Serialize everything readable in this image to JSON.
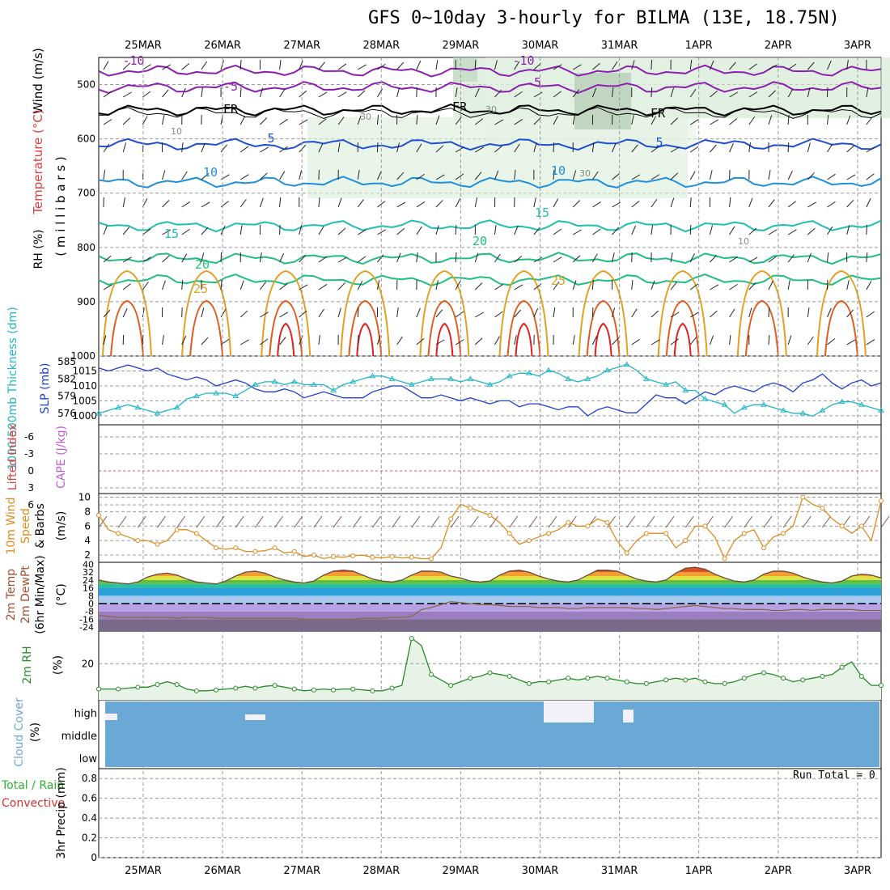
{
  "title": "GFS 0~10day 3-hourly for BILMA (13E, 18.75N)",
  "days": [
    "25MAR",
    "26MAR",
    "27MAR",
    "28MAR",
    "29MAR",
    "30MAR",
    "31MAR",
    "1APR",
    "2APR",
    "3APR"
  ],
  "panels": {
    "upper": {
      "ylabel_wind": "Wind (m/s)",
      "ylabel_temp": "Temperature (°C)",
      "ylabel_rh": "RH (%)",
      "ylabel_mb": "( m i l l i b a r s )",
      "yticks": [
        500,
        600,
        700,
        800,
        900,
        1000
      ],
      "isotherm_labels": [
        {
          "text": "-10",
          "level": "top"
        },
        {
          "text": "-10",
          "level": "top"
        },
        {
          "text": "-5",
          "level": "500"
        },
        {
          "text": "-5",
          "level": "500"
        },
        {
          "text": "FR",
          "level": "freezing"
        },
        {
          "text": "FR",
          "level": "freezing"
        },
        {
          "text": "FR",
          "level": "freezing"
        },
        {
          "text": "5",
          "level": "600"
        },
        {
          "text": "5",
          "level": "600"
        },
        {
          "text": "10",
          "level": "700"
        },
        {
          "text": "10",
          "level": "700"
        },
        {
          "text": "15",
          "level": "780"
        },
        {
          "text": "15",
          "level": "780"
        },
        {
          "text": "20",
          "level": "800"
        },
        {
          "text": "20",
          "level": "830"
        },
        {
          "text": "25",
          "level": "850"
        },
        {
          "text": "25",
          "level": "870"
        }
      ],
      "rh_labels": [
        "30",
        "30",
        "10",
        "30",
        "10"
      ]
    },
    "slp": {
      "ylabel_thick": "1000-500mb Thickness (dm)",
      "ylabel_slp": "SLP (mb)",
      "thick_ticks": [
        585,
        582,
        579,
        576
      ],
      "slp_ticks": [
        1015,
        1010,
        1005,
        1000
      ]
    },
    "cape": {
      "ylabel_li": "Lifted Index",
      "ylabel_cape": "CAPE (J/kg)",
      "ticks": [
        "-6",
        "-3",
        "0",
        "3",
        "6"
      ]
    },
    "wind10": {
      "ylabel1": "10m Wind",
      "ylabel2": "Speed",
      "ylabel3": "& Barbs",
      "ylabel_unit": "(m/s)",
      "ticks": [
        10,
        8,
        6,
        4,
        2
      ]
    },
    "temp2m": {
      "ylabel1": "2m Temp",
      "ylabel2": "2m DewPt",
      "ylabel3": "(6hr Min/Max)",
      "ylabel_unit": "(°C)",
      "ticks": [
        "40",
        "32",
        "24",
        "16",
        "8",
        "0",
        "-8",
        "-16",
        "-24"
      ]
    },
    "rh2m": {
      "ylabel": "2m RH",
      "ylabel_unit": "(%)",
      "ticks": [
        "20"
      ]
    },
    "cloud": {
      "ylabel": "Cloud Cover",
      "ylabel_unit": "(%)",
      "levels": [
        "high",
        "middle",
        "low"
      ]
    },
    "precip": {
      "ylabel_a": "Total / Rain",
      "ylabel_b": "Convective",
      "ylabel_c": "3hr Precip (mm)",
      "ticks": [
        "0.8",
        "0.6",
        "0.4",
        "0.2",
        "0"
      ],
      "run_total": "Run Total = 0"
    }
  },
  "colors": {
    "slp": "#1f3fcf",
    "thickness": "#22b6c6",
    "wind_speed": "#e08a1e",
    "rh": "#2a8a2a",
    "cloud": "#6aa9d6",
    "iso_minus10": "#8b1fb0",
    "iso_5": "#1f4fd0",
    "iso_10": "#1f8fe0",
    "iso_15": "#1fbfb0",
    "iso_20": "#1fbf7f",
    "iso_25": "#e0a020",
    "iso_30": "#e05a1e",
    "iso_35": "#e01f1f"
  },
  "chart_data": [
    {
      "type": "line",
      "title": "SLP and 1000-500mb Thickness",
      "x_steps": 81,
      "series": [
        {
          "name": "SLP (mb)",
          "values": [
            1016,
            1015,
            1016,
            1017,
            1016,
            1015,
            1016,
            1014,
            1013,
            1012,
            1013,
            1012,
            1010,
            1011,
            1012,
            1011,
            1009,
            1008,
            1008,
            1009,
            1008,
            1006,
            1007,
            1008,
            1007,
            1006,
            1006,
            1006,
            1008,
            1009,
            1010,
            1010,
            1008,
            1006,
            1006,
            1007,
            1006,
            1005,
            1006,
            1005,
            1004,
            1005,
            1005,
            1003,
            1004,
            1004,
            1003,
            1002,
            1003,
            1003,
            1000,
            1002,
            1003,
            1002,
            1001,
            1001,
            1004,
            1007,
            1006,
            1006,
            1004,
            1006,
            1008,
            1007,
            1009,
            1010,
            1009,
            1008,
            1010,
            1011,
            1010,
            1008,
            1011,
            1012,
            1014,
            1011,
            1009,
            1011,
            1012,
            1010,
            1011
          ]
        },
        {
          "name": "1000-500mb Thickness (dm)",
          "values": [
            576,
            576.5,
            577,
            577.5,
            577,
            576.5,
            576,
            576.5,
            577,
            578.5,
            579,
            579.5,
            579.5,
            579.5,
            579,
            580,
            581,
            581.5,
            581.5,
            581,
            581.5,
            581,
            581,
            581,
            580,
            581,
            581.5,
            582,
            582.5,
            582.5,
            582,
            581.5,
            581,
            581.5,
            582,
            582,
            582,
            581.5,
            582,
            581.5,
            581,
            581.5,
            582.5,
            583,
            583,
            582.5,
            583.5,
            583,
            582,
            581.5,
            582,
            582.5,
            583.5,
            584,
            584.5,
            583.5,
            582,
            581.5,
            581,
            581.5,
            580,
            580,
            578.5,
            578,
            577.5,
            576,
            577,
            577.5,
            577.5,
            577,
            576.5,
            576,
            576,
            575.5,
            576.5,
            577.5,
            578,
            578,
            577.5,
            577,
            576.5
          ]
        }
      ]
    },
    {
      "type": "line",
      "title": "10m Wind Speed",
      "x_steps": 81,
      "series": [
        {
          "name": "10m Wind Speed (m/s)",
          "values": [
            7.5,
            5.5,
            5,
            4.5,
            4,
            4,
            3.5,
            4,
            5.5,
            5.5,
            5,
            4,
            3,
            2.8,
            3,
            2.5,
            2.5,
            2.6,
            3,
            2.3,
            2.5,
            1.8,
            2,
            1.5,
            1.8,
            1.7,
            1.9,
            2,
            1.7,
            1.6,
            1.8,
            1.6,
            1.7,
            1.5,
            1.5,
            3,
            7,
            9,
            8.5,
            8,
            7.5,
            6.5,
            5,
            3.5,
            4,
            4.5,
            5,
            5.5,
            6.5,
            6,
            6,
            7,
            6.5,
            4,
            2.3,
            4,
            5,
            5,
            5,
            3,
            4,
            6,
            6,
            4.5,
            1.5,
            4,
            5,
            5.5,
            3,
            4.5,
            5,
            6,
            10,
            9,
            8.5,
            7,
            6,
            5,
            6,
            4,
            9.5
          ]
        }
      ]
    },
    {
      "type": "line",
      "title": "2m RH",
      "x_steps": 81,
      "series": [
        {
          "name": "2m RH (%)",
          "values": [
            6,
            6,
            6,
            6.5,
            7,
            7,
            8.5,
            10,
            8.5,
            6,
            5,
            5,
            5.5,
            6,
            6.5,
            7.5,
            6.5,
            7.5,
            8,
            7,
            6,
            5,
            5.5,
            6,
            5.5,
            6,
            6,
            5.5,
            5,
            5,
            6.5,
            8,
            34,
            30,
            14,
            11,
            8,
            10,
            12,
            13,
            15,
            14,
            13,
            11,
            9,
            10,
            10,
            11,
            12,
            11,
            12,
            13,
            12,
            11,
            10,
            9,
            9,
            10,
            11,
            12,
            11,
            12,
            10,
            9,
            9,
            10,
            12,
            14,
            15,
            14,
            12,
            10,
            11,
            12,
            13,
            14,
            18,
            21,
            13,
            8,
            8
          ]
        }
      ]
    },
    {
      "type": "area",
      "title": "2m Temp",
      "x_steps": 81,
      "series": [
        {
          "name": "2m Temp (°C)",
          "values": [
            24,
            22,
            21,
            20,
            22,
            27,
            30,
            31,
            29,
            25,
            22,
            21,
            20,
            23,
            28,
            32,
            33,
            31,
            27,
            24,
            22,
            21,
            23,
            29,
            33,
            34,
            33,
            29,
            25,
            23,
            22,
            24,
            29,
            33,
            33,
            32,
            28,
            26,
            23,
            22,
            23,
            29,
            33,
            34,
            32,
            28,
            25,
            23,
            22,
            24,
            29,
            34,
            34,
            33,
            29,
            25,
            23,
            22,
            24,
            31,
            36,
            37,
            35,
            30,
            26,
            23,
            22,
            24,
            30,
            33,
            33,
            31,
            27,
            24,
            22,
            21,
            23,
            28,
            30,
            29,
            26
          ]
        },
        {
          "name": "2m DewPt (°C)",
          "values": [
            -12,
            -13,
            -14,
            -14,
            -14,
            -14,
            -14,
            -14,
            -15,
            -14,
            -14,
            -14,
            -15,
            -15,
            -15,
            -15,
            -15,
            -15,
            -15,
            -15,
            -15,
            -16,
            -16,
            -16,
            -16,
            -16,
            -16,
            -15,
            -15,
            -15,
            -14,
            -14,
            -13,
            -6,
            -4,
            -1,
            2,
            1,
            0,
            -1,
            -1,
            -2,
            -3,
            -3,
            -3,
            -4,
            -4,
            -4,
            -5,
            -5,
            -4,
            -4,
            -4,
            -4,
            -4,
            -5,
            -5,
            -6,
            -5,
            -4,
            -3,
            -2,
            -3,
            -4,
            -5,
            -5,
            -6,
            -6,
            -6,
            -7,
            -7,
            -6,
            -6,
            -7,
            -6,
            -6,
            -6,
            -6,
            -7,
            -7,
            -7
          ]
        }
      ]
    },
    {
      "type": "heatmap",
      "title": "Cloud Cover",
      "levels": [
        "high",
        "middle",
        "low"
      ],
      "note": "mostly clear (blue), scattered high cloud around 30MAR-31MAR"
    },
    {
      "type": "bar",
      "title": "3hr Precip (mm)",
      "ylim": [
        0,
        0.9
      ],
      "values": [],
      "run_total": 0
    }
  ]
}
